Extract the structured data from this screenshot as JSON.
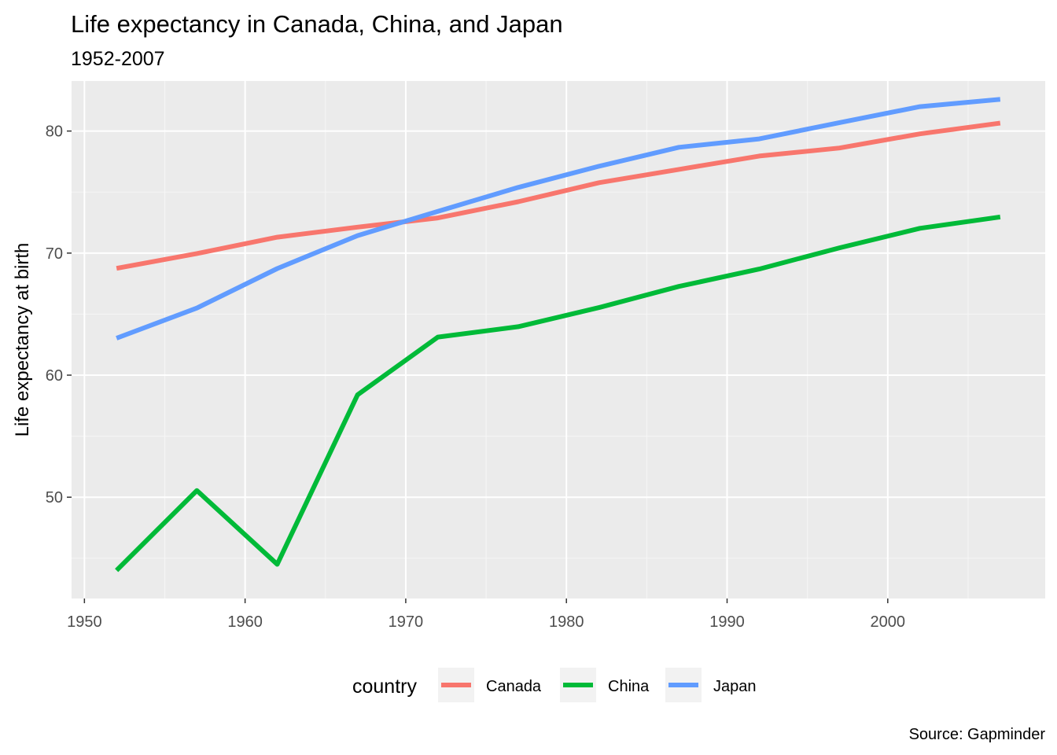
{
  "chart_data": {
    "type": "line",
    "title": "Life expectancy in Canada, China, and Japan",
    "subtitle": "1952-2007",
    "xlabel": "",
    "ylabel": "Life expectancy at birth",
    "caption": "Source: Gapminder",
    "legend_title": "country",
    "legend_position": "bottom",
    "grid": true,
    "xlim": [
      1949.2,
      2009.8
    ],
    "ylim": [
      41.7,
      84.1
    ],
    "x_ticks": [
      1950,
      1960,
      1970,
      1980,
      1990,
      2000
    ],
    "x_tick_labels": [
      "1950",
      "1960",
      "1970",
      "1980",
      "1990",
      "2000"
    ],
    "y_ticks": [
      50,
      60,
      70,
      80
    ],
    "y_tick_labels": [
      "50",
      "60",
      "70",
      "80"
    ],
    "x": [
      1952,
      1957,
      1962,
      1967,
      1972,
      1977,
      1982,
      1987,
      1992,
      1997,
      2002,
      2007
    ],
    "series": [
      {
        "name": "Canada",
        "color": "#F8766D",
        "values": [
          68.75,
          69.96,
          71.3,
          72.13,
          72.88,
          74.21,
          75.76,
          76.86,
          77.95,
          78.61,
          79.77,
          80.65
        ]
      },
      {
        "name": "China",
        "color": "#00BA38",
        "values": [
          44.0,
          50.55,
          44.5,
          58.38,
          63.12,
          63.97,
          65.53,
          67.27,
          68.69,
          70.43,
          72.03,
          72.96
        ]
      },
      {
        "name": "Japan",
        "color": "#619CFF",
        "values": [
          63.03,
          65.5,
          68.73,
          71.43,
          73.42,
          75.38,
          77.11,
          78.67,
          79.36,
          80.69,
          82.0,
          82.6
        ]
      }
    ]
  }
}
